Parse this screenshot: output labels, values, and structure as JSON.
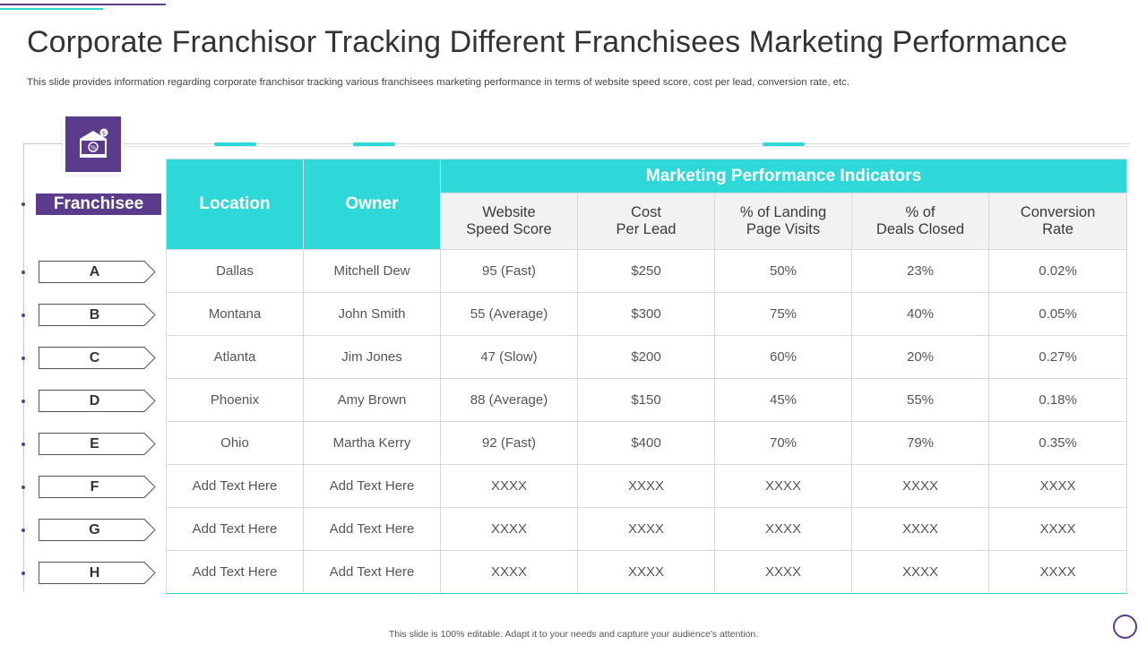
{
  "title": "Corporate Franchisor Tracking Different Franchisees Marketing Performance",
  "subtitle": "This slide provides information regarding corporate franchisor tracking various franchisees marketing performance in terms of website speed score, cost per lead, conversion rate, etc.",
  "icon": "bank-building-icon",
  "colors": {
    "accent_purple": "#5b3b8c",
    "accent_teal": "#2ed8d8",
    "subheader_bg": "#f2f2f2"
  },
  "franchisee_label": "Franchisee",
  "table": {
    "headers": {
      "location": "Location",
      "owner": "Owner",
      "group": "Marketing Performance Indicators",
      "metrics": [
        {
          "line1": "Website",
          "line2": "Speed Score"
        },
        {
          "line1": "Cost",
          "line2": "Per Lead"
        },
        {
          "line1": "% of Landing",
          "line2": "Page Visits"
        },
        {
          "line1": "% of",
          "line2": "Deals Closed"
        },
        {
          "line1": "Conversion",
          "line2": "Rate"
        }
      ]
    },
    "rows": [
      {
        "franchisee": "A",
        "cells": [
          "Dallas",
          "Mitchell Dew",
          "95 (Fast)",
          "$250",
          "50%",
          "23%",
          "0.02%"
        ]
      },
      {
        "franchisee": "B",
        "cells": [
          "Montana",
          "John Smith",
          "55 (Average)",
          "$300",
          "75%",
          "40%",
          "0.05%"
        ]
      },
      {
        "franchisee": "C",
        "cells": [
          "Atlanta",
          "Jim Jones",
          "47 (Slow)",
          "$200",
          "60%",
          "20%",
          "0.27%"
        ]
      },
      {
        "franchisee": "D",
        "cells": [
          "Phoenix",
          "Amy Brown",
          "88 (Average)",
          "$150",
          "45%",
          "55%",
          "0.18%"
        ]
      },
      {
        "franchisee": "E",
        "cells": [
          "Ohio",
          "Martha Kerry",
          "92 (Fast)",
          "$400",
          "70%",
          "79%",
          "0.35%"
        ]
      },
      {
        "franchisee": "F",
        "cells": [
          "Add Text Here",
          "Add Text Here",
          "XXXX",
          "XXXX",
          "XXXX",
          "XXXX",
          "XXXX"
        ]
      },
      {
        "franchisee": "G",
        "cells": [
          "Add Text Here",
          "Add Text Here",
          "XXXX",
          "XXXX",
          "XXXX",
          "XXXX",
          "XXXX"
        ]
      },
      {
        "franchisee": "H",
        "cells": [
          "Add Text Here",
          "Add Text Here",
          "XXXX",
          "XXXX",
          "XXXX",
          "XXXX",
          "XXXX"
        ]
      }
    ]
  },
  "footer": "This slide is 100% editable. Adapt it to your needs and capture your audience's attention."
}
